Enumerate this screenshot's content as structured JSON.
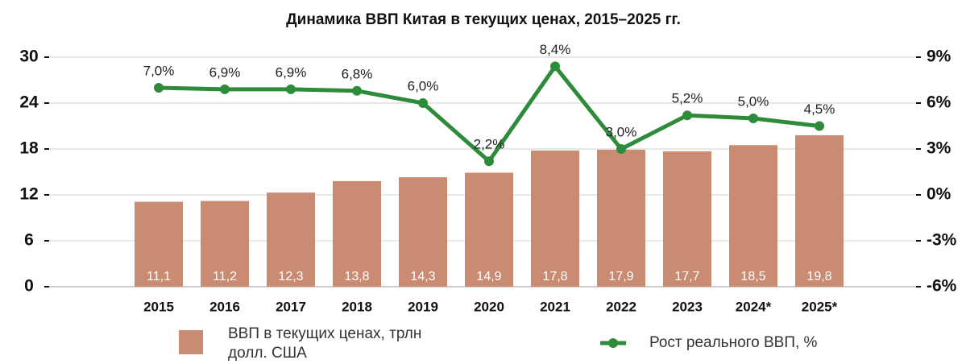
{
  "chart_data": {
    "type": "bar",
    "title": "Динамика ВВП Китая в текущих ценах, 2015–2025 гг.",
    "categories": [
      "2015",
      "2016",
      "2017",
      "2018",
      "2019",
      "2020",
      "2021",
      "2022",
      "2023",
      "2024*",
      "2025*"
    ],
    "series": [
      {
        "name": "ВВП в текущих ценах, трлн долл. США",
        "type": "bar",
        "color": "#c98b72",
        "values": [
          11.1,
          11.2,
          12.3,
          13.8,
          14.3,
          14.9,
          17.8,
          17.9,
          17.7,
          18.5,
          19.8
        ],
        "value_labels": [
          "11,1",
          "11,2",
          "12,3",
          "13,8",
          "14,3",
          "14,9",
          "17,8",
          "17,9",
          "17,7",
          "18,5",
          "19,8"
        ]
      },
      {
        "name": "Рост реального ВВП, %",
        "type": "line",
        "color": "#2e8b3a",
        "axis": "y2",
        "values": [
          7.0,
          6.9,
          6.9,
          6.8,
          6.0,
          2.2,
          8.4,
          3.0,
          5.2,
          5.0,
          4.5
        ],
        "value_labels": [
          "7,0%",
          "6,9%",
          "6,9%",
          "6,8%",
          "6,0%",
          "2,2%",
          "8,4%",
          "3,0%",
          "5,2%",
          "5,0%",
          "4,5%"
        ]
      }
    ],
    "ylim": [
      0,
      30
    ],
    "yticks": [
      0,
      6,
      12,
      18,
      24,
      30
    ],
    "y2lim": [
      -6,
      9
    ],
    "y2ticks": [
      {
        "value": -6,
        "label": "-6%"
      },
      {
        "value": -3,
        "label": "-3%"
      },
      {
        "value": 0,
        "label": "0%"
      },
      {
        "value": 3,
        "label": "3%"
      },
      {
        "value": 6,
        "label": "6%"
      },
      {
        "value": 9,
        "label": "9%"
      }
    ],
    "grid": true,
    "legend": "bottom"
  }
}
